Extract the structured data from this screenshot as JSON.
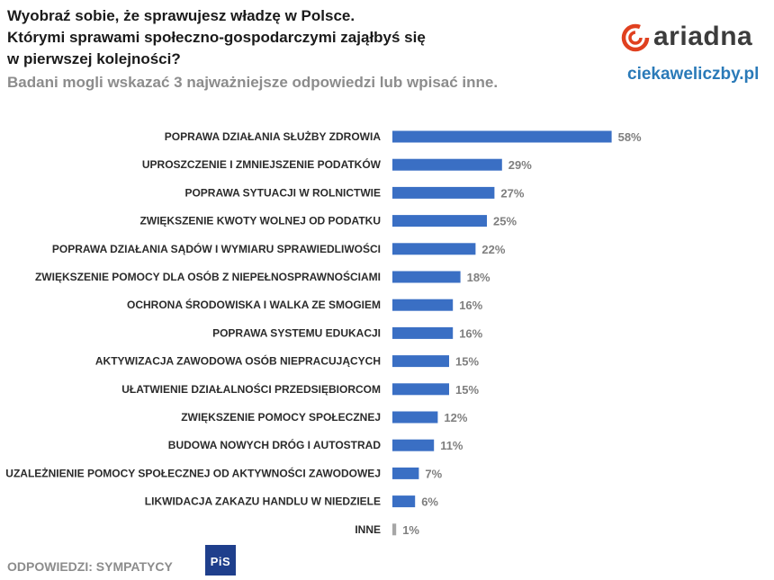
{
  "header": {
    "title_lines": [
      "Wyobraź sobie, że sprawujesz władzę w Polsce.",
      "Którymi sprawami społeczno-gospodarczymi zająłbyś się",
      "w pierwszej kolejności?"
    ],
    "subtitle": "Badani mogli wskazać 3 najważniejsze odpowiedzi lub wpisać inne."
  },
  "branding": {
    "logo_text": "ariadna",
    "site": "ciekaweliczby.pl",
    "logo_color": "#e0401f",
    "site_color": "#2a7ab8"
  },
  "footer": {
    "label": "ODPOWIEDZI: SYMPATYCY",
    "party_logo_text": "PiS",
    "party_logo_color": "#1f3f8c"
  },
  "chart_data": {
    "type": "bar",
    "orientation": "horizontal",
    "categories": [
      "POPRAWA DZIAŁANIA SŁUŻBY ZDROWIA",
      "UPROSZCZENIE I ZMNIEJSZENIE PODATKÓW",
      "POPRAWA SYTUACJI W ROLNICTWIE",
      "ZWIĘKSZENIE KWOTY WOLNEJ OD PODATKU",
      "POPRAWA DZIAŁANIA SĄDÓW I WYMIARU SPRAWIEDLIWOŚCI",
      "ZWIĘKSZENIE POMOCY DLA OSÓB Z NIEPEŁNOSPRAWNOŚCIAMI",
      "OCHRONA ŚRODOWISKA I WALKA ZE SMOGIEM",
      "POPRAWA SYSTEMU EDUKACJI",
      "AKTYWIZACJA ZAWODOWA OSÓB NIEPRACUJĄCYCH",
      "UŁATWIENIE DZIAŁALNOŚCI PRZEDSIĘBIORCOM",
      "ZWIĘKSZENIE POMOCY SPOŁECZNEJ",
      "BUDOWA NOWYCH DRÓG I AUTOSTRAD",
      "UZALEŻNIENIE POMOCY SPOŁECZNEJ OD AKTYWNOŚCI ZAWODOWEJ",
      "LIKWIDACJA ZAKAZU HANDLU W NIEDZIELE",
      "INNE"
    ],
    "values": [
      58,
      29,
      27,
      25,
      22,
      18,
      16,
      16,
      15,
      15,
      12,
      11,
      7,
      6,
      1
    ],
    "value_labels": [
      "58%",
      "29%",
      "27%",
      "25%",
      "22%",
      "18%",
      "16%",
      "16%",
      "15%",
      "15%",
      "12%",
      "11%",
      "7%",
      "6%",
      "1%"
    ],
    "unit": "%",
    "xlim": [
      0,
      60
    ],
    "colors": [
      "#3a6fc4",
      "#3a6fc4",
      "#3a6fc4",
      "#3a6fc4",
      "#3a6fc4",
      "#3a6fc4",
      "#3a6fc4",
      "#3a6fc4",
      "#3a6fc4",
      "#3a6fc4",
      "#3a6fc4",
      "#3a6fc4",
      "#3a6fc4",
      "#3a6fc4",
      "#a6a6a6"
    ],
    "grid": false,
    "legend": "none"
  }
}
